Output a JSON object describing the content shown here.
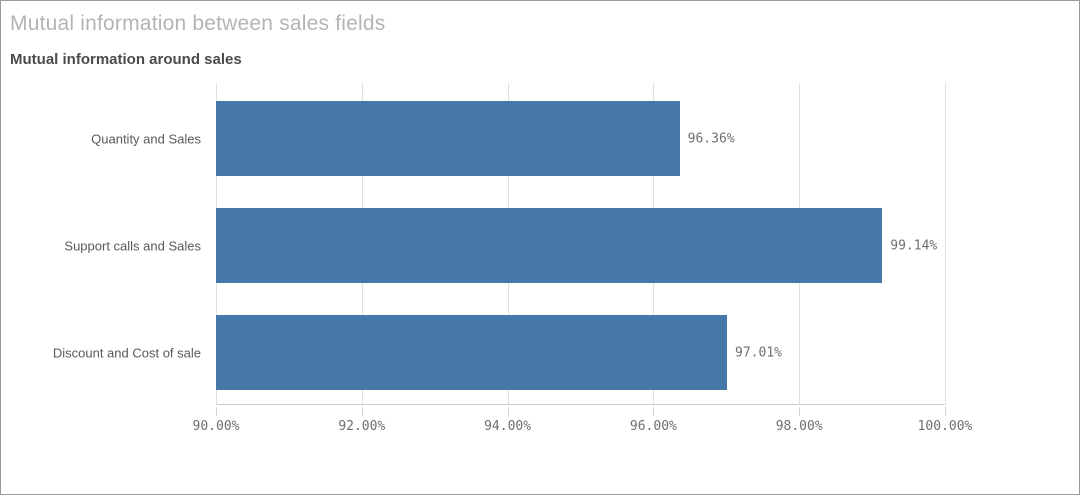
{
  "header": {
    "title": "Mutual information between sales fields",
    "subtitle": "Mutual information around sales"
  },
  "chart_data": {
    "type": "bar",
    "orientation": "horizontal",
    "title": "Mutual information between sales fields",
    "subtitle": "Mutual information around sales",
    "categories": [
      "Quantity and Sales",
      "Support calls and Sales",
      "Discount and Cost of sale"
    ],
    "values": [
      96.36,
      99.14,
      97.01
    ],
    "value_labels": [
      "96.36%",
      "99.14%",
      "97.01%"
    ],
    "xlabel": "",
    "ylabel": "",
    "xlim": [
      90,
      100
    ],
    "x_ticks": [
      90,
      92,
      94,
      96,
      98,
      100
    ],
    "x_tick_labels": [
      "90.00%",
      "92.00%",
      "94.00%",
      "96.00%",
      "98.00%",
      "100.00%"
    ],
    "grid": "vertical",
    "legend": "none",
    "bar_color": "#4678a9"
  },
  "colors": {
    "bar": "#4678a9"
  }
}
